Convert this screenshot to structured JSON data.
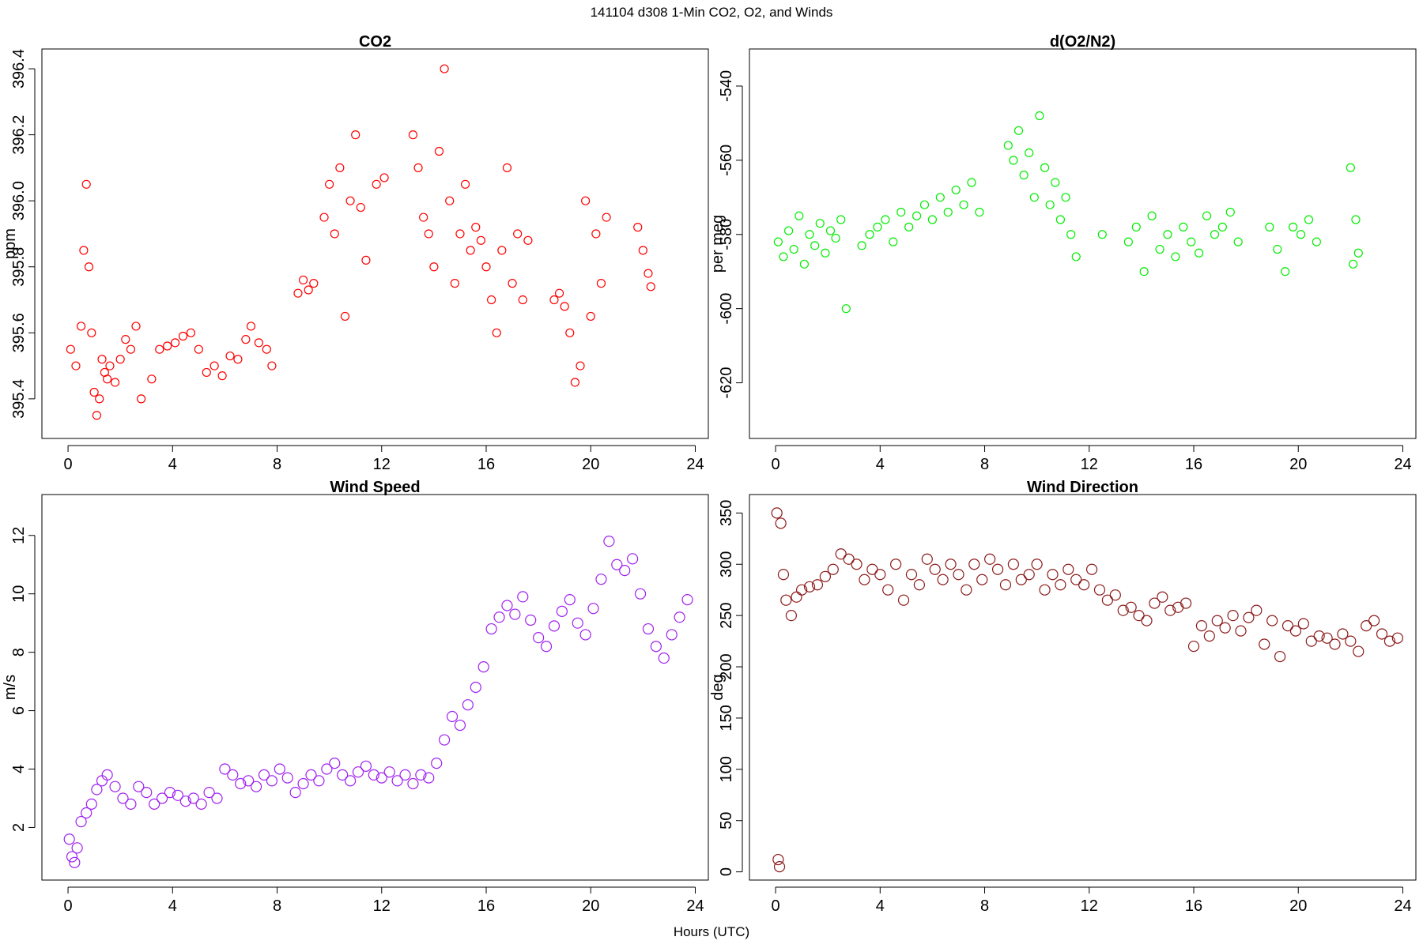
{
  "title": "141104   d308   1-Min CO2, O2, and Winds",
  "xlabel": "Hours (UTC)",
  "chart_data": [
    {
      "id": "co2",
      "type": "scatter",
      "title": "CO2",
      "ylabel": "ppm",
      "color": "#ff0000",
      "xlim": [
        -1,
        24.5
      ],
      "ylim": [
        395.28,
        396.46
      ],
      "xticks": [
        0,
        4,
        8,
        12,
        16,
        20,
        24
      ],
      "yticks": [
        395.4,
        395.6,
        395.8,
        396.0,
        396.2,
        396.4
      ],
      "xtick_labels": [
        "0",
        "4",
        "8",
        "12",
        "16",
        "20",
        "24"
      ],
      "ytick_labels": [
        "395.4",
        "395.6",
        "395.8",
        "396.0",
        "396.2",
        "396.4"
      ],
      "x": [
        0.1,
        0.3,
        0.5,
        0.6,
        0.7,
        0.8,
        0.9,
        1.0,
        1.1,
        1.2,
        1.3,
        1.4,
        1.5,
        1.6,
        1.8,
        2.0,
        2.2,
        2.4,
        2.6,
        2.8,
        3.2,
        3.5,
        3.8,
        4.1,
        4.4,
        4.7,
        5.0,
        5.3,
        5.6,
        5.9,
        6.2,
        6.5,
        6.8,
        7.0,
        7.3,
        7.6,
        7.8,
        8.8,
        9.0,
        9.2,
        9.4,
        9.8,
        10.0,
        10.2,
        10.4,
        10.6,
        10.8,
        11.0,
        11.2,
        11.4,
        11.8,
        12.1,
        13.2,
        13.4,
        13.6,
        13.8,
        14.0,
        14.2,
        14.4,
        14.6,
        14.8,
        15.0,
        15.2,
        15.4,
        15.6,
        15.8,
        16.0,
        16.2,
        16.4,
        16.6,
        16.8,
        17.0,
        17.2,
        17.4,
        17.6,
        18.6,
        18.8,
        19.0,
        19.2,
        19.4,
        19.6,
        19.8,
        20.0,
        20.2,
        20.4,
        20.6,
        21.8,
        22.0,
        22.2,
        22.3
      ],
      "y": [
        395.55,
        395.5,
        395.62,
        395.85,
        396.05,
        395.8,
        395.6,
        395.42,
        395.35,
        395.4,
        395.52,
        395.48,
        395.46,
        395.5,
        395.45,
        395.52,
        395.58,
        395.55,
        395.62,
        395.4,
        395.46,
        395.55,
        395.56,
        395.57,
        395.59,
        395.6,
        395.55,
        395.48,
        395.5,
        395.47,
        395.53,
        395.52,
        395.58,
        395.62,
        395.57,
        395.55,
        395.5,
        395.72,
        395.76,
        395.73,
        395.75,
        395.95,
        396.05,
        395.9,
        396.1,
        395.65,
        396.0,
        396.2,
        395.98,
        395.82,
        396.05,
        396.07,
        396.2,
        396.1,
        395.95,
        395.9,
        395.8,
        396.15,
        396.4,
        396.0,
        395.75,
        395.9,
        396.05,
        395.85,
        395.92,
        395.88,
        395.8,
        395.7,
        395.6,
        395.85,
        396.1,
        395.75,
        395.9,
        395.7,
        395.88,
        395.7,
        395.72,
        395.68,
        395.6,
        395.45,
        395.5,
        396.0,
        395.65,
        395.9,
        395.75,
        395.95,
        395.92,
        395.85,
        395.78,
        395.74
      ]
    },
    {
      "id": "o2",
      "type": "scatter",
      "title": "d(O2/N2)",
      "ylabel": "per meg",
      "color": "#00ee00",
      "xlim": [
        -1,
        24.5
      ],
      "ylim": [
        -635,
        -530
      ],
      "xticks": [
        0,
        4,
        8,
        12,
        16,
        20,
        24
      ],
      "yticks": [
        -540,
        -560,
        -580,
        -600,
        -620
      ],
      "xtick_labels": [
        "0",
        "4",
        "8",
        "12",
        "16",
        "20",
        "24"
      ],
      "ytick_labels": [
        "-540",
        "-560",
        "-580",
        "-600",
        "-620"
      ],
      "x": [
        0.1,
        0.3,
        0.5,
        0.7,
        0.9,
        1.1,
        1.3,
        1.5,
        1.7,
        1.9,
        2.1,
        2.3,
        2.5,
        2.7,
        3.3,
        3.6,
        3.9,
        4.2,
        4.5,
        4.8,
        5.1,
        5.4,
        5.7,
        6.0,
        6.3,
        6.6,
        6.9,
        7.2,
        7.5,
        7.8,
        8.9,
        9.1,
        9.3,
        9.5,
        9.7,
        9.9,
        10.1,
        10.3,
        10.5,
        10.7,
        10.9,
        11.1,
        11.3,
        11.5,
        12.5,
        13.5,
        13.8,
        14.1,
        14.4,
        14.7,
        15.0,
        15.3,
        15.6,
        15.9,
        16.2,
        16.5,
        16.8,
        17.1,
        17.4,
        17.7,
        18.9,
        19.2,
        19.5,
        19.8,
        20.1,
        20.4,
        20.7,
        22.0,
        22.1,
        22.2,
        22.3
      ],
      "y": [
        -582,
        -586,
        -579,
        -584,
        -575,
        -588,
        -580,
        -583,
        -577,
        -585,
        -579,
        -581,
        -576,
        -600,
        -583,
        -580,
        -578,
        -576,
        -582,
        -574,
        -578,
        -575,
        -572,
        -576,
        -570,
        -574,
        -568,
        -572,
        -566,
        -574,
        -556,
        -560,
        -552,
        -564,
        -558,
        -570,
        -548,
        -562,
        -572,
        -566,
        -576,
        -570,
        -580,
        -586,
        -580,
        -582,
        -578,
        -590,
        -575,
        -584,
        -580,
        -586,
        -578,
        -582,
        -585,
        -575,
        -580,
        -578,
        -574,
        -582,
        -578,
        -584,
        -590,
        -578,
        -580,
        -576,
        -582,
        -562,
        -588,
        -576,
        -585
      ]
    },
    {
      "id": "wind-speed",
      "type": "scatter",
      "title": "Wind Speed",
      "ylabel": "m/s",
      "color": "#a020f0",
      "xlim": [
        -1,
        24.5
      ],
      "ylim": [
        0.2,
        13.4
      ],
      "xticks": [
        0,
        4,
        8,
        12,
        16,
        20,
        24
      ],
      "yticks": [
        2,
        4,
        6,
        8,
        10,
        12
      ],
      "xtick_labels": [
        "0",
        "4",
        "8",
        "12",
        "16",
        "20",
        "24"
      ],
      "ytick_labels": [
        "2",
        "4",
        "6",
        "8",
        "10",
        "12"
      ],
      "x": [
        0.05,
        0.15,
        0.25,
        0.35,
        0.5,
        0.7,
        0.9,
        1.1,
        1.3,
        1.5,
        1.8,
        2.1,
        2.4,
        2.7,
        3.0,
        3.3,
        3.6,
        3.9,
        4.2,
        4.5,
        4.8,
        5.1,
        5.4,
        5.7,
        6.0,
        6.3,
        6.6,
        6.9,
        7.2,
        7.5,
        7.8,
        8.1,
        8.4,
        8.7,
        9.0,
        9.3,
        9.6,
        9.9,
        10.2,
        10.5,
        10.8,
        11.1,
        11.4,
        11.7,
        12.0,
        12.3,
        12.6,
        12.9,
        13.2,
        13.5,
        13.8,
        14.1,
        14.4,
        14.7,
        15.0,
        15.3,
        15.6,
        15.9,
        16.2,
        16.5,
        16.8,
        17.1,
        17.4,
        17.7,
        18.0,
        18.3,
        18.6,
        18.9,
        19.2,
        19.5,
        19.8,
        20.1,
        20.4,
        20.7,
        21.0,
        21.3,
        21.6,
        21.9,
        22.2,
        22.5,
        22.8,
        23.1,
        23.4,
        23.7
      ],
      "y": [
        1.6,
        1.0,
        0.8,
        1.3,
        2.2,
        2.5,
        2.8,
        3.3,
        3.6,
        3.8,
        3.4,
        3.0,
        2.8,
        3.4,
        3.2,
        2.8,
        3.0,
        3.2,
        3.1,
        2.9,
        3.0,
        2.8,
        3.2,
        3.0,
        4.0,
        3.8,
        3.5,
        3.6,
        3.4,
        3.8,
        3.6,
        4.0,
        3.7,
        3.2,
        3.5,
        3.8,
        3.6,
        4.0,
        4.2,
        3.8,
        3.6,
        3.9,
        4.1,
        3.8,
        3.7,
        3.9,
        3.6,
        3.8,
        3.5,
        3.8,
        3.7,
        4.2,
        5.0,
        5.8,
        5.5,
        6.2,
        6.8,
        7.5,
        8.8,
        9.2,
        9.6,
        9.3,
        9.9,
        9.1,
        8.5,
        8.2,
        8.9,
        9.4,
        9.8,
        9.0,
        8.6,
        9.5,
        10.5,
        11.8,
        11.0,
        10.8,
        11.2,
        10.0,
        8.8,
        8.2,
        7.8,
        8.6,
        9.2,
        9.8
      ]
    },
    {
      "id": "wind-direction",
      "type": "scatter",
      "title": "Wind Direction",
      "ylabel": "deg",
      "color": "#8b1a1a",
      "xlim": [
        -1,
        24.5
      ],
      "ylim": [
        -8,
        368
      ],
      "xticks": [
        0,
        4,
        8,
        12,
        16,
        20,
        24
      ],
      "yticks": [
        0,
        50,
        100,
        150,
        200,
        250,
        300,
        350
      ],
      "xtick_labels": [
        "0",
        "4",
        "8",
        "12",
        "16",
        "20",
        "24"
      ],
      "ytick_labels": [
        "0",
        "50",
        "100",
        "150",
        "200",
        "250",
        "300",
        "350"
      ],
      "x": [
        0.05,
        0.1,
        0.15,
        0.2,
        0.3,
        0.4,
        0.6,
        0.8,
        1.0,
        1.3,
        1.6,
        1.9,
        2.2,
        2.5,
        2.8,
        3.1,
        3.4,
        3.7,
        4.0,
        4.3,
        4.6,
        4.9,
        5.2,
        5.5,
        5.8,
        6.1,
        6.4,
        6.7,
        7.0,
        7.3,
        7.6,
        7.9,
        8.2,
        8.5,
        8.8,
        9.1,
        9.4,
        9.7,
        10.0,
        10.3,
        10.6,
        10.9,
        11.2,
        11.5,
        11.8,
        12.1,
        12.4,
        12.7,
        13.0,
        13.3,
        13.6,
        13.9,
        14.2,
        14.5,
        14.8,
        15.1,
        15.4,
        15.7,
        16.0,
        16.3,
        16.6,
        16.9,
        17.2,
        17.5,
        17.8,
        18.1,
        18.4,
        18.7,
        19.0,
        19.3,
        19.6,
        19.9,
        20.2,
        20.5,
        20.8,
        21.1,
        21.4,
        21.7,
        22.0,
        22.3,
        22.6,
        22.9,
        23.2,
        23.5,
        23.8
      ],
      "y": [
        350,
        12,
        5,
        340,
        290,
        265,
        250,
        268,
        275,
        278,
        280,
        288,
        295,
        310,
        305,
        300,
        285,
        295,
        290,
        275,
        300,
        265,
        290,
        280,
        305,
        295,
        285,
        300,
        290,
        275,
        300,
        285,
        305,
        295,
        280,
        300,
        285,
        290,
        300,
        275,
        290,
        280,
        295,
        285,
        280,
        295,
        275,
        265,
        270,
        255,
        258,
        250,
        245,
        262,
        268,
        255,
        258,
        262,
        220,
        240,
        230,
        245,
        238,
        250,
        235,
        248,
        255,
        222,
        245,
        210,
        240,
        235,
        242,
        225,
        230,
        228,
        222,
        232,
        225,
        215,
        240,
        245,
        232,
        225,
        228
      ]
    }
  ]
}
